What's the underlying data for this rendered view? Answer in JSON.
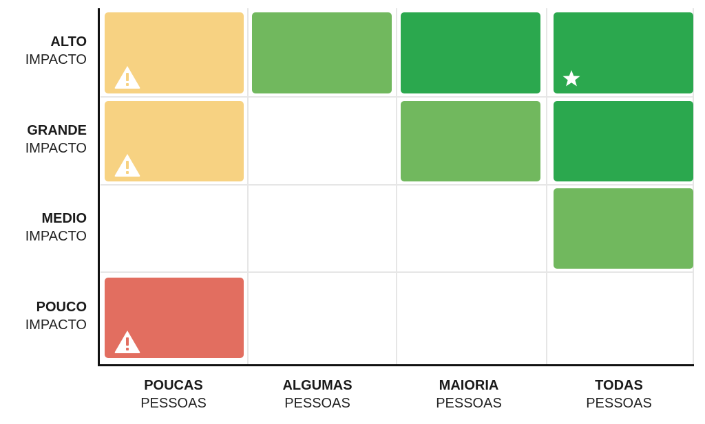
{
  "colors": {
    "yellow": "#f7d282",
    "light_green": "#71b85e",
    "dark_green": "#2ba84e",
    "red": "#e26e60",
    "grid": "#e6e6e6",
    "axis": "#111111"
  },
  "rows": [
    {
      "bold": "ALTO",
      "light": "IMPACTO"
    },
    {
      "bold": "GRANDE",
      "light": "IMPACTO"
    },
    {
      "bold": "MEDIO",
      "light": "IMPACTO"
    },
    {
      "bold": "POUCO",
      "light": "IMPACTO"
    }
  ],
  "columns": [
    {
      "bold": "POUCAS",
      "light": "PESSOAS"
    },
    {
      "bold": "ALGUMAS",
      "light": "PESSOAS"
    },
    {
      "bold": "MAIORIA",
      "light": "PESSOAS"
    },
    {
      "bold": "TODAS",
      "light": "PESSOAS"
    }
  ],
  "cells": [
    {
      "row": 0,
      "col": 0,
      "color": "yellow",
      "icon": "warning-icon"
    },
    {
      "row": 0,
      "col": 1,
      "color": "light_green",
      "icon": ""
    },
    {
      "row": 0,
      "col": 2,
      "color": "dark_green",
      "icon": ""
    },
    {
      "row": 0,
      "col": 3,
      "color": "dark_green",
      "icon": "star-icon"
    },
    {
      "row": 1,
      "col": 0,
      "color": "yellow",
      "icon": "warning-icon"
    },
    {
      "row": 1,
      "col": 2,
      "color": "light_green",
      "icon": ""
    },
    {
      "row": 1,
      "col": 3,
      "color": "dark_green",
      "icon": ""
    },
    {
      "row": 2,
      "col": 3,
      "color": "light_green",
      "icon": ""
    },
    {
      "row": 3,
      "col": 0,
      "color": "red",
      "icon": "warning-icon"
    }
  ]
}
